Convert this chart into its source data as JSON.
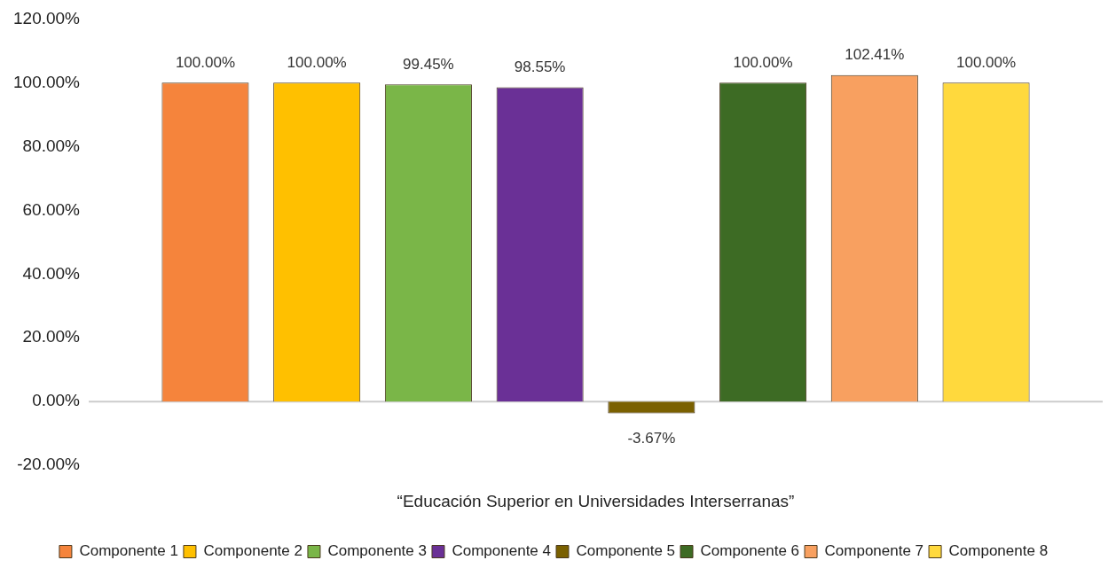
{
  "chart_data": {
    "type": "bar",
    "categories": [
      "“Educación Superior en Universidades Interserranas”"
    ],
    "series": [
      {
        "name": "Componente 1",
        "color": "#f5843c",
        "values": [
          100.0
        ],
        "value_labels": [
          "100.00%"
        ]
      },
      {
        "name": "Componente 2",
        "color": "#ffc000",
        "values": [
          100.0
        ],
        "value_labels": [
          "100.00%"
        ]
      },
      {
        "name": "Componente 3",
        "color": "#7ab648",
        "values": [
          99.45
        ],
        "value_labels": [
          "99.45%"
        ]
      },
      {
        "name": "Componente 4",
        "color": "#6a3096",
        "values": [
          98.55
        ],
        "value_labels": [
          "98.55%"
        ]
      },
      {
        "name": "Componente 5",
        "color": "#7a6000",
        "values": [
          -3.67
        ],
        "value_labels": [
          "-3.67%"
        ]
      },
      {
        "name": "Componente 6",
        "color": "#3d6b24",
        "values": [
          100.0
        ],
        "value_labels": [
          "100.00%"
        ]
      },
      {
        "name": "Componente 7",
        "color": "#f8a060",
        "values": [
          102.41
        ],
        "value_labels": [
          "102.41%"
        ]
      },
      {
        "name": "Componente 8",
        "color": "#ffd93d",
        "values": [
          100.0
        ],
        "value_labels": [
          "100.00%"
        ]
      }
    ],
    "ylim": [
      -20,
      120
    ],
    "yticks": [
      {
        "value": -20,
        "label": "-20.00%"
      },
      {
        "value": 0,
        "label": "0.00%"
      },
      {
        "value": 20,
        "label": "20.00%"
      },
      {
        "value": 40,
        "label": "40.00%"
      },
      {
        "value": 60,
        "label": "60.00%"
      },
      {
        "value": 80,
        "label": "80.00%"
      },
      {
        "value": 100,
        "label": "100.00%"
      },
      {
        "value": 120,
        "label": "120.00%"
      }
    ],
    "ref_lines": [
      {
        "axis": "y",
        "value": 0,
        "color": "#cccccc"
      }
    ],
    "grid": false,
    "legend": "bottom"
  }
}
